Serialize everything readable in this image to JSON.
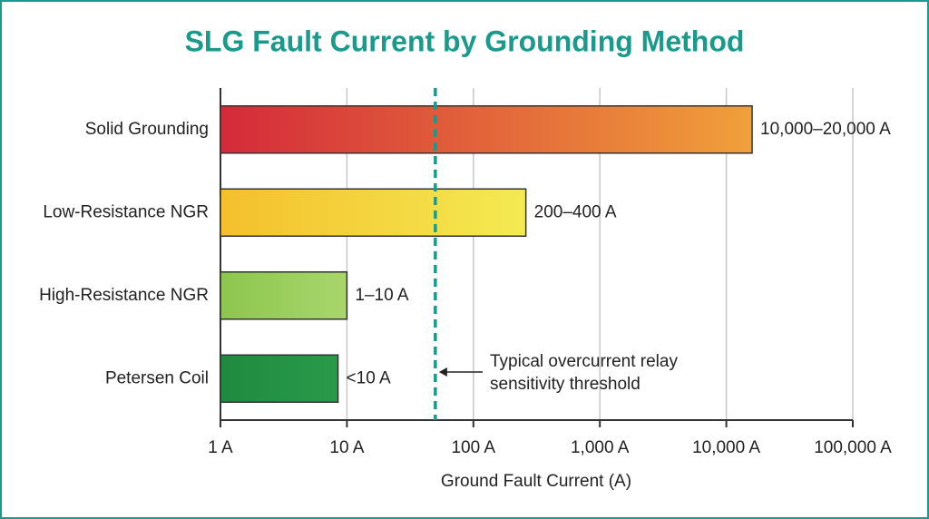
{
  "chart_data": {
    "type": "bar",
    "orientation": "horizontal",
    "title": "SLG Fault Current by Grounding Method",
    "x_label": "Ground Fault Current (A)",
    "categories": [
      "Solid Grounding",
      "Low-Resistance NGR",
      "High-Resistance NGR",
      "Petersen Coil"
    ],
    "values": [
      16000,
      260,
      10,
      8.5
    ],
    "value_labels": [
      "10,000–20,000 A",
      "200–400 A",
      "1–10 A",
      "<10 A"
    ],
    "gradients": [
      [
        "#d42a3a",
        "#f0a03a"
      ],
      [
        "#f4c02c",
        "#f4ea52"
      ],
      [
        "#8cc64e",
        "#a9d66c"
      ],
      [
        "#1f8a3f",
        "#2a9a4a"
      ]
    ],
    "xscale": "log",
    "xlim": [
      1,
      100000
    ],
    "xticks": [
      {
        "value": 1,
        "label": "1 A"
      },
      {
        "value": 10,
        "label": "10 A"
      },
      {
        "value": 100,
        "label": "100 A"
      },
      {
        "value": 1000,
        "label": "1,000 A"
      },
      {
        "value": 10000,
        "label": "10,000 A"
      },
      {
        "value": 100000,
        "label": "100,000 A"
      }
    ],
    "grid": true,
    "threshold": {
      "value": 50,
      "color": "#1a9a8a",
      "label": [
        "Typical overcurrent relay",
        "sensitivity threshold"
      ]
    },
    "title_color": "#1a9a8a"
  }
}
